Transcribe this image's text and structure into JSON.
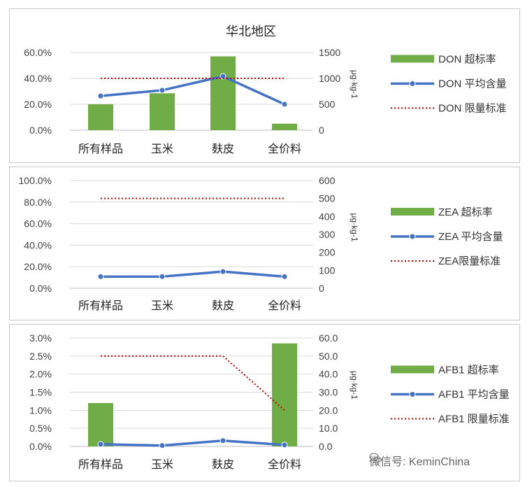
{
  "chart_data": [
    {
      "type": "bar",
      "title": "华北地区",
      "categories": [
        "所有样品",
        "玉米",
        "麸皮",
        "全价料"
      ],
      "y_left_ticks": [
        "60.0%",
        "40.0%",
        "20.0%",
        "0.0%"
      ],
      "y_left_range": [
        0,
        60
      ],
      "y_right_ticks": [
        "1500",
        "1000",
        "500",
        "0"
      ],
      "y_right_range": [
        0,
        1500
      ],
      "y_right_label": "μg·kg-1",
      "series": [
        {
          "name": "DON 超标率",
          "kind": "bar",
          "axis": "left",
          "values": [
            20,
            28.5,
            57,
            5
          ],
          "color": "#70ad47"
        },
        {
          "name": "DON 平均含量",
          "kind": "line",
          "axis": "right",
          "values": [
            660,
            770,
            1040,
            500
          ],
          "color": "#4472c4"
        },
        {
          "name": "DON 限量标准",
          "kind": "dotted",
          "axis": "right",
          "values": [
            1000,
            1000,
            1000,
            1000
          ],
          "color": "#c00000"
        }
      ]
    },
    {
      "type": "bar",
      "title": "",
      "categories": [
        "所有样品",
        "玉米",
        "麸皮",
        "全价料"
      ],
      "y_left_ticks": [
        "100.0%",
        "80.0%",
        "60.0%",
        "40.0%",
        "20.0%",
        "0.0%"
      ],
      "y_left_range": [
        0,
        100
      ],
      "y_right_ticks": [
        "600",
        "500",
        "400",
        "300",
        "200",
        "100",
        "0"
      ],
      "y_right_range": [
        0,
        600
      ],
      "y_right_label": "μg·kg-1",
      "series": [
        {
          "name": "ZEA 超标率",
          "kind": "bar",
          "axis": "left",
          "values": [
            0,
            0,
            0,
            0
          ],
          "color": "#70ad47"
        },
        {
          "name": "ZEA 平均含量",
          "kind": "line",
          "axis": "right",
          "values": [
            65,
            65,
            93,
            65
          ],
          "color": "#4472c4"
        },
        {
          "name": "ZEA限量标准",
          "kind": "dotted",
          "axis": "right",
          "values": [
            500,
            500,
            500,
            500
          ],
          "color": "#c00000"
        }
      ]
    },
    {
      "type": "bar",
      "title": "",
      "categories": [
        "所有样品",
        "玉米",
        "麸皮",
        "全价料"
      ],
      "y_left_ticks": [
        "3.0%",
        "2.5%",
        "2.0%",
        "1.5%",
        "1.0%",
        "0.5%",
        "0.0%"
      ],
      "y_left_range": [
        0,
        3
      ],
      "y_right_ticks": [
        "60.0",
        "50.0",
        "40.0",
        "30.0",
        "20.0",
        "10.0",
        "0.0"
      ],
      "y_right_range": [
        0,
        60
      ],
      "y_right_label": "μg·kg-1",
      "series": [
        {
          "name": "AFB1 超标率",
          "kind": "bar",
          "axis": "left",
          "values": [
            1.2,
            0,
            0,
            2.85
          ],
          "color": "#70ad47"
        },
        {
          "name": "AFB1 平均含量",
          "kind": "line",
          "axis": "right",
          "values": [
            1.2,
            0.5,
            3.2,
            0.8
          ],
          "color": "#4472c4"
        },
        {
          "name": "AFB1 限量标准",
          "kind": "dotted",
          "axis": "right",
          "values": [
            50,
            50,
            50,
            20
          ],
          "color": "#c00000"
        }
      ]
    }
  ],
  "watermark": {
    "text": "微信号: KeminChina",
    "icon": "wechat-icon"
  }
}
